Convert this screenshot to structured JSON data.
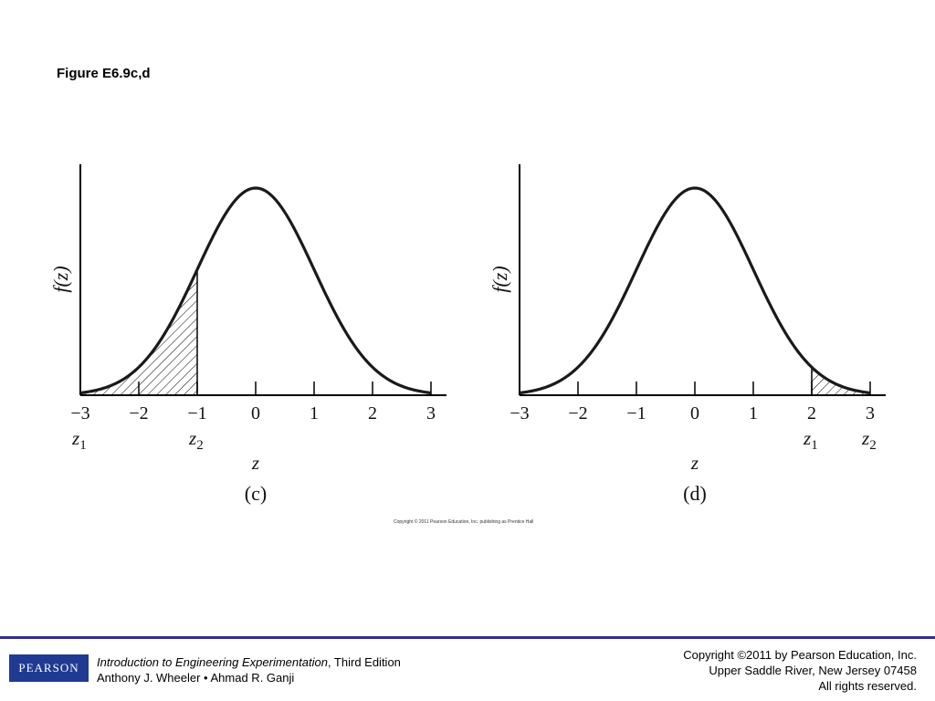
{
  "slide": {
    "title": "Figure E6.9c,d",
    "inner_copyright": "Copyright © 2011 Pearson Education, Inc. publishing as Prentice Hall"
  },
  "chart_data": [
    {
      "type": "line",
      "function": "standard normal pdf",
      "panel_label": "(c)",
      "ylabel": "f(z)",
      "xlabel": "z",
      "x_ticks": [
        -3,
        -2,
        -1,
        0,
        1,
        2,
        3
      ],
      "x_tick_labels": [
        "−3",
        "−2",
        "−1",
        "0",
        "1",
        "2",
        "3"
      ],
      "xlim": [
        -3,
        3
      ],
      "shaded_region": [
        -3,
        -1
      ],
      "limit_labels": [
        {
          "name": "z1",
          "at": -3
        },
        {
          "name": "z2",
          "at": -1
        }
      ],
      "series": [
        {
          "x": [
            -3,
            -2.5,
            -2,
            -1.5,
            -1,
            -0.5,
            0,
            0.5,
            1,
            1.5,
            2,
            2.5,
            3
          ],
          "y": [
            0.0044,
            0.0175,
            0.054,
            0.1295,
            0.242,
            0.3521,
            0.3989,
            0.3521,
            0.242,
            0.1295,
            0.054,
            0.0175,
            0.0044
          ]
        }
      ]
    },
    {
      "type": "line",
      "function": "standard normal pdf",
      "panel_label": "(d)",
      "ylabel": "f(z)",
      "xlabel": "z",
      "x_ticks": [
        -3,
        -2,
        -1,
        0,
        1,
        2,
        3
      ],
      "x_tick_labels": [
        "−3",
        "−2",
        "−1",
        "0",
        "1",
        "2",
        "3"
      ],
      "xlim": [
        -3,
        3
      ],
      "shaded_region": [
        2,
        3
      ],
      "limit_labels": [
        {
          "name": "z1",
          "at": 2
        },
        {
          "name": "z2",
          "at": 3
        }
      ],
      "series": [
        {
          "x": [
            -3,
            -2.5,
            -2,
            -1.5,
            -1,
            -0.5,
            0,
            0.5,
            1,
            1.5,
            2,
            2.5,
            3
          ],
          "y": [
            0.0044,
            0.0175,
            0.054,
            0.1295,
            0.242,
            0.3521,
            0.3989,
            0.3521,
            0.242,
            0.1295,
            0.054,
            0.0175,
            0.0044
          ]
        }
      ]
    }
  ],
  "footer": {
    "logo_text": "PEARSON",
    "book_title": "Introduction to Engineering Experimentation",
    "edition": ", Third Edition",
    "authors": "Anthony J. Wheeler • Ahmad R. Ganji",
    "copyright_line1": "Copyright ©2011 by Pearson Education, Inc.",
    "copyright_line2": "Upper Saddle River, New Jersey 07458",
    "copyright_line3": "All rights reserved."
  }
}
